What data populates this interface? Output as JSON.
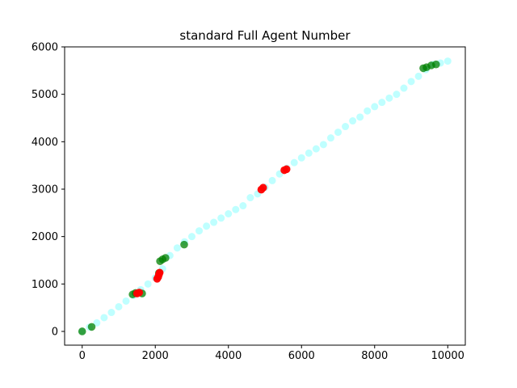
{
  "chart_data": {
    "type": "scatter",
    "title": "standard Full Agent Number",
    "xlabel": "",
    "ylabel": "",
    "xlim": [
      -480,
      10480
    ],
    "ylim": [
      -290,
      6000
    ],
    "xticks": [
      0,
      2000,
      4000,
      6000,
      8000,
      10000
    ],
    "yticks": [
      0,
      1000,
      2000,
      3000,
      4000,
      5000,
      6000
    ],
    "grid": false,
    "legend": "none",
    "colors": {
      "baseline": "#00ffff",
      "green": "#008000",
      "red": "#ff0000"
    },
    "series": [
      {
        "color": "baseline",
        "opacity": 0.25,
        "points": [
          [
            0,
            0
          ],
          [
            200,
            90
          ],
          [
            400,
            180
          ],
          [
            600,
            290
          ],
          [
            800,
            400
          ],
          [
            1000,
            520
          ],
          [
            1200,
            640
          ],
          [
            1400,
            760
          ],
          [
            1600,
            880
          ],
          [
            1800,
            1000
          ],
          [
            2000,
            1130
          ],
          [
            2200,
            1320
          ],
          [
            2400,
            1600
          ],
          [
            2600,
            1760
          ],
          [
            2800,
            1890
          ],
          [
            3000,
            2000
          ],
          [
            3200,
            2120
          ],
          [
            3400,
            2220
          ],
          [
            3600,
            2300
          ],
          [
            3800,
            2390
          ],
          [
            4000,
            2480
          ],
          [
            4200,
            2570
          ],
          [
            4400,
            2650
          ],
          [
            4600,
            2820
          ],
          [
            4800,
            2900
          ],
          [
            5000,
            3040
          ],
          [
            5200,
            3180
          ],
          [
            5400,
            3320
          ],
          [
            5600,
            3440
          ],
          [
            5800,
            3560
          ],
          [
            6000,
            3660
          ],
          [
            6200,
            3760
          ],
          [
            6400,
            3850
          ],
          [
            6600,
            3940
          ],
          [
            6800,
            4080
          ],
          [
            7000,
            4200
          ],
          [
            7200,
            4320
          ],
          [
            7400,
            4440
          ],
          [
            7600,
            4520
          ],
          [
            7800,
            4650
          ],
          [
            8000,
            4740
          ],
          [
            8200,
            4830
          ],
          [
            8400,
            4920
          ],
          [
            8600,
            5000
          ],
          [
            8800,
            5130
          ],
          [
            9000,
            5270
          ],
          [
            9200,
            5380
          ],
          [
            9400,
            5520
          ],
          [
            9600,
            5630
          ],
          [
            9800,
            5660
          ],
          [
            10000,
            5700
          ]
        ]
      },
      {
        "color": "green",
        "opacity": 0.75,
        "points": [
          [
            0,
            0
          ],
          [
            260,
            95
          ],
          [
            1380,
            780
          ],
          [
            1460,
            810
          ],
          [
            1640,
            800
          ],
          [
            2100,
            1230
          ],
          [
            2130,
            1480
          ],
          [
            2200,
            1520
          ],
          [
            2280,
            1550
          ],
          [
            2790,
            1830
          ],
          [
            9330,
            5550
          ],
          [
            9420,
            5570
          ],
          [
            9550,
            5610
          ],
          [
            9680,
            5630
          ]
        ]
      },
      {
        "color": "red",
        "opacity": 0.95,
        "points": [
          [
            1500,
            800
          ],
          [
            1560,
            820
          ],
          [
            2050,
            1110
          ],
          [
            2080,
            1150
          ],
          [
            2100,
            1200
          ],
          [
            2120,
            1240
          ],
          [
            4900,
            2990
          ],
          [
            4950,
            3030
          ],
          [
            5530,
            3400
          ],
          [
            5590,
            3420
          ]
        ]
      }
    ]
  }
}
